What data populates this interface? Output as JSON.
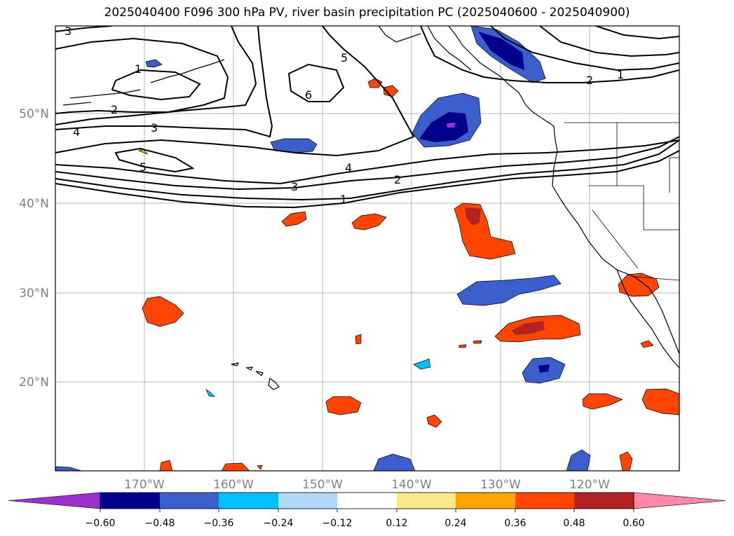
{
  "title": "2025040400 F096 300 hPa PV, river basin precipitation PC (2025040600 - 2025040900)",
  "map": {
    "lat_labels": [
      "50°N",
      "40°N",
      "30°N",
      "20°N"
    ],
    "lon_labels": [
      "170°W",
      "160°W",
      "150°W",
      "140°W",
      "130°W",
      "120°W"
    ],
    "contour_labels": [
      {
        "text": "3",
        "id": "pv-3-nw"
      },
      {
        "text": "1",
        "id": "pv-1-nw"
      },
      {
        "text": "2",
        "id": "pv-2-w"
      },
      {
        "text": "3",
        "id": "pv-3-w"
      },
      {
        "text": "4",
        "id": "pv-4-w"
      },
      {
        "text": "5",
        "id": "pv-5-w"
      },
      {
        "text": "5",
        "id": "pv-5-n"
      },
      {
        "text": "6",
        "id": "pv-6"
      },
      {
        "text": "4",
        "id": "pv-4-c"
      },
      {
        "text": "3",
        "id": "pv-3-c"
      },
      {
        "text": "2",
        "id": "pv-2-c"
      },
      {
        "text": "1",
        "id": "pv-1-c"
      },
      {
        "text": "2",
        "id": "pv-2-ne"
      },
      {
        "text": "1",
        "id": "pv-1-ne"
      }
    ]
  },
  "colorbar": {
    "ticks": [
      "−0.60",
      "−0.48",
      "−0.36",
      "−0.24",
      "−0.12",
      "0.12",
      "0.24",
      "0.36",
      "0.48",
      "0.60"
    ],
    "colors": [
      "#9932cc",
      "#00008b",
      "#3a5fcd",
      "#00bfff",
      "#add8f7",
      "#ffffff",
      "#fce98a",
      "#ffa500",
      "#ff4500",
      "#b22222",
      "#ff88aa"
    ]
  }
}
